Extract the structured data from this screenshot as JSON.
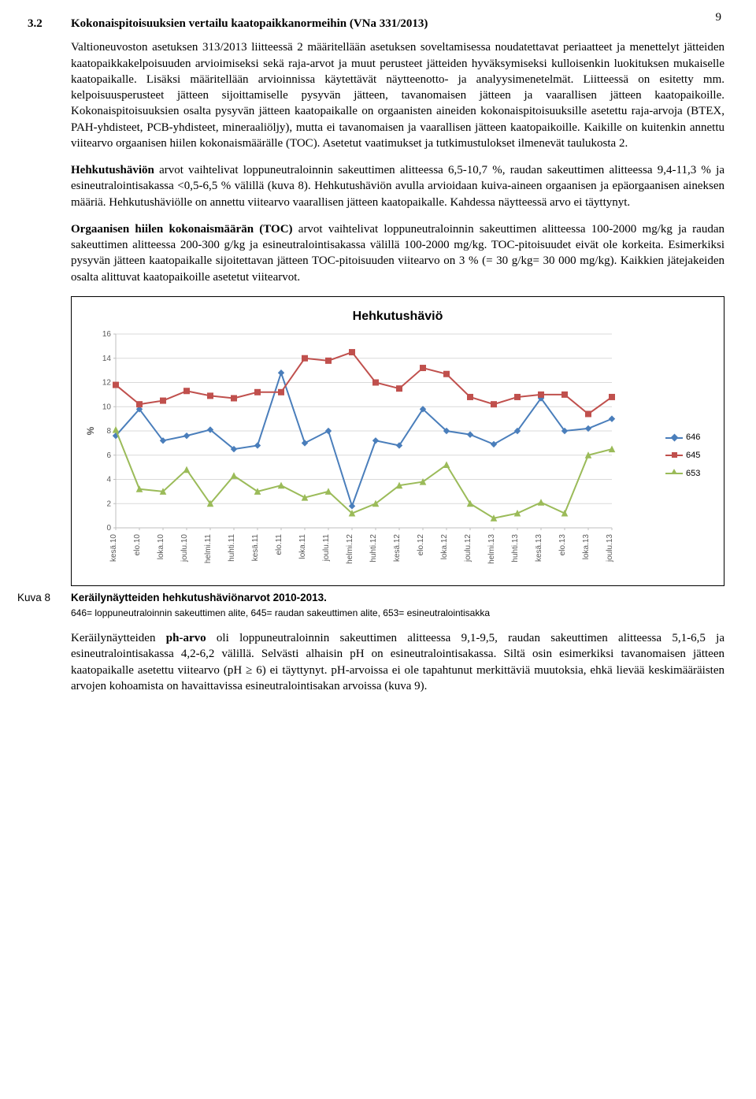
{
  "page_number": "9",
  "section": {
    "number": "3.2",
    "title": "Kokonaispitoisuuksien vertailu kaatopaikkanormeihin (VNa 331/2013)"
  },
  "paragraphs": {
    "p1": "Valtioneuvoston asetuksen 313/2013 liitteessä 2 määritellään asetuksen soveltamisessa noudatettavat periaatteet ja menettelyt jätteiden kaatopaikkakelpoisuuden arvioimiseksi sekä raja-arvot ja muut perusteet jätteiden hyväksymiseksi kulloisenkin luokituksen mukaiselle kaatopaikalle. Lisäksi määritellään arvioinnissa käytettävät näytteenotto- ja analyysimenetelmät. Liitteessä on esitetty mm. kelpoisuusperusteet jätteen sijoittamiselle pysyvän jätteen, tavanomaisen jätteen ja vaarallisen jätteen kaatopaikoille. Kokonaispitoisuuksien osalta pysyvän jätteen kaatopaikalle on orgaanisten aineiden kokonaispitoisuuksille asetettu raja-arvoja (BTEX, PAH-yhdisteet, PCB-yhdisteet, mineraaliöljy), mutta ei tavanomaisen ja vaarallisen jätteen kaatopaikoille. Kaikille on kuitenkin annettu viitearvo orgaanisen hiilen kokonaismäärälle (TOC). Asetetut vaatimukset ja tutkimustulokset ilmenevät taulukosta 2.",
    "p2_lead": "Hehkutushäviön",
    "p2_rest": " arvot vaihtelivat loppuneutraloinnin sakeuttimen alitteessa 6,5-10,7 %, raudan sakeuttimen alitteessa 9,4-11,3 % ja esineutralointisakassa <0,5-6,5 % välillä (kuva 8). Hehkutushäviön avulla arvioidaan kuiva-aineen orgaanisen ja epäorgaanisen aineksen määriä. Hehkutushäviölle on annettu viitearvo vaarallisen jätteen kaatopaikalle. Kahdessa näytteessä arvo ei täyttynyt.",
    "p3_lead": "Orgaanisen hiilen kokonaismäärän (TOC)",
    "p3_rest": " arvot vaihtelivat loppuneutraloinnin sakeuttimen alitteessa 100-2000 mg/kg ja raudan sakeuttimen alitteessa 200-300 g/kg ja esineutralointisakassa välillä 100-2000 mg/kg. TOC-pitoisuudet eivät ole korkeita. Esimerkiksi pysyvän jätteen kaatopaikalle sijoitettavan jätteen TOC-pitoisuuden viitearvo on 3 % (= 30 g/kg= 30 000 mg/kg). Kaikkien jätejakeiden osalta alittuvat kaatopaikoille asetetut viitearvot.",
    "p4_lead": "ph-arvo",
    "p4_pre": "Keräilynäytteiden ",
    "p4_rest": " oli loppuneutraloinnin sakeuttimen alitteessa 9,1-9,5, raudan sakeuttimen alitteessa 5,1-6,5 ja esineutralointisakassa 4,2-6,2 välillä. Selvästi alhaisin pH on esineutralointisakassa. Siltä osin esimerkiksi tavanomaisen jätteen kaatopaikalle asetettu viitearvo (pH ≥ 6) ei täyttynyt. pH-arvoissa ei ole tapahtunut merkittäviä muutoksia, ehkä lievää keskimääräisten arvojen kohoamista on havaittavissa esineutralointisakan arvoissa (kuva 9)."
  },
  "chart": {
    "type": "line",
    "title": "Hehkutushäviö",
    "ylabel": "%",
    "ylim": [
      0,
      16
    ],
    "ytick_step": 2,
    "yticks": [
      0,
      2,
      4,
      6,
      8,
      10,
      12,
      14,
      16
    ],
    "plot_bg": "#ffffff",
    "grid_color": "#d9d9d9",
    "axis_color": "#bfbfbf",
    "tick_label_color": "#595959",
    "categories": [
      "kesä.10",
      "elo.10",
      "loka.10",
      "joulu.10",
      "helmi.11",
      "huhti.11",
      "kesä.11",
      "elo.11",
      "loka.11",
      "joulu.11",
      "helmi.12",
      "huhti.12",
      "kesä.12",
      "elo.12",
      "loka.12",
      "joulu.12",
      "helmi.13",
      "huhti.13",
      "kesä.13",
      "elo.13",
      "loka.13",
      "joulu.13"
    ],
    "series": [
      {
        "name": "646",
        "color": "#4a7ebb",
        "marker": "diamond",
        "values": [
          7.6,
          9.8,
          7.2,
          7.6,
          8.1,
          6.5,
          6.8,
          12.8,
          7.0,
          8.0,
          1.8,
          7.2,
          6.8,
          9.8,
          8.0,
          7.7,
          6.9,
          8.0,
          10.7,
          8.0,
          8.2,
          9.0
        ]
      },
      {
        "name": "645",
        "color": "#c0504d",
        "marker": "square",
        "values": [
          11.8,
          10.2,
          10.5,
          11.3,
          10.9,
          10.7,
          11.2,
          11.2,
          14.0,
          13.8,
          14.5,
          12.0,
          11.5,
          13.2,
          12.7,
          10.8,
          10.2,
          10.8,
          11.0,
          11.0,
          9.4,
          10.8
        ]
      },
      {
        "name": "653",
        "color": "#9bbb59",
        "marker": "triangle",
        "values": [
          8.1,
          3.2,
          3.0,
          4.8,
          2.0,
          4.3,
          3.0,
          3.5,
          2.5,
          3.0,
          1.2,
          2.0,
          3.5,
          3.8,
          5.2,
          2.0,
          0.8,
          1.2,
          2.1,
          1.2,
          6.0,
          6.5
        ]
      }
    ],
    "legend_labels": [
      "646",
      "645",
      "653"
    ]
  },
  "caption": {
    "label": "Kuva 8",
    "title": "Keräilynäytteiden hehkutushäviönarvot 2010-2013.",
    "sub": "646= loppuneutraloinnin sakeuttimen alite, 645= raudan sakeuttimen alite, 653= esineutralointisakka"
  }
}
